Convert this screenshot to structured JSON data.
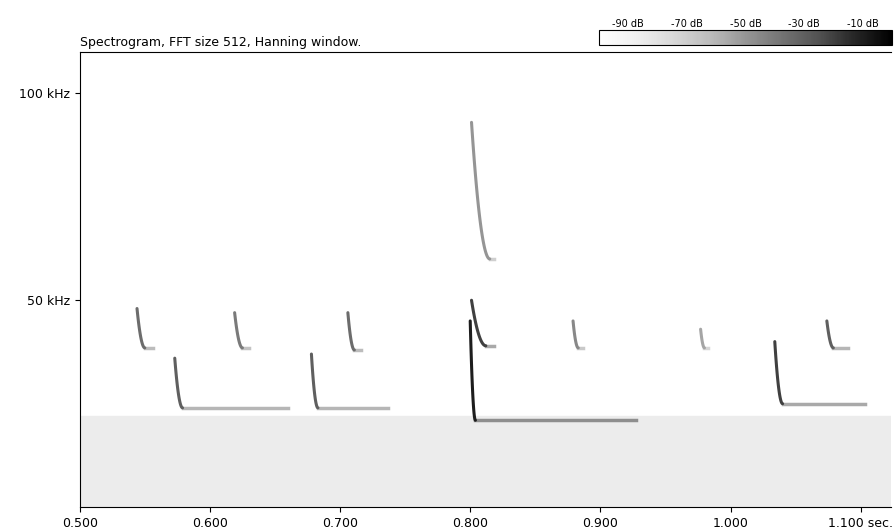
{
  "chart_data": {
    "type": "spectrogram",
    "title": "Spectrogram, FFT size 512, Hanning window.",
    "xlim": [
      0.5,
      1.123
    ],
    "xticks": [
      {
        "value": 0.5,
        "label": "0.500"
      },
      {
        "value": 0.6,
        "label": "0.600"
      },
      {
        "value": 0.7,
        "label": "0.700"
      },
      {
        "value": 0.8,
        "label": "0.800"
      },
      {
        "value": 0.9,
        "label": "0.900"
      },
      {
        "value": 1.0,
        "label": "1.000"
      },
      {
        "value": 1.1,
        "label": "1.100 sec."
      }
    ],
    "ylim": [
      0,
      110
    ],
    "yticks": [
      {
        "value": 50,
        "label": "50 kHz"
      },
      {
        "value": 100,
        "label": "100 kHz"
      }
    ],
    "colorbar_range": [
      -100,
      0
    ],
    "colorbar_ticks": [
      {
        "value": -90,
        "label": "-90 dB"
      },
      {
        "value": -70,
        "label": "-70 dB"
      },
      {
        "value": -50,
        "label": "-50 dB"
      },
      {
        "value": -30,
        "label": "-30 dB"
      },
      {
        "value": -10,
        "label": "-10 dB"
      }
    ],
    "noise_band": {
      "f_high": 22,
      "level": -85
    },
    "calls": [
      {
        "t_start": 0.544,
        "t_end": 0.55,
        "f_start": 48,
        "f_end": 38.5,
        "tail_end": 0.556,
        "level": -35
      },
      {
        "t_start": 0.573,
        "t_end": 0.579,
        "f_start": 36,
        "f_end": 24,
        "tail_end": 0.66,
        "level": -30
      },
      {
        "t_start": 0.619,
        "t_end": 0.625,
        "f_start": 47,
        "f_end": 38.5,
        "tail_end": 0.63,
        "level": -40
      },
      {
        "t_start": 0.678,
        "t_end": 0.683,
        "f_start": 37,
        "f_end": 24,
        "tail_end": 0.737,
        "level": -30
      },
      {
        "t_start": 0.706,
        "t_end": 0.711,
        "f_start": 47,
        "f_end": 38,
        "tail_end": 0.716,
        "level": -35
      },
      {
        "t_start": 0.8,
        "t_end": 0.804,
        "f_start": 45,
        "f_end": 21,
        "tail_end": 0.927,
        "level": -10
      },
      {
        "t_start": 0.801,
        "t_end": 0.812,
        "f_start": 50,
        "f_end": 39,
        "tail_end": 0.818,
        "level": -20
      },
      {
        "t_start": 0.801,
        "t_end": 0.815,
        "f_start": 93,
        "f_end": 60,
        "tail_end": 0.818,
        "level": -50
      },
      {
        "t_start": 0.879,
        "t_end": 0.883,
        "f_start": 45,
        "f_end": 38.5,
        "tail_end": 0.887,
        "level": -45
      },
      {
        "t_start": 0.977,
        "t_end": 0.98,
        "f_start": 43,
        "f_end": 38.5,
        "tail_end": 0.983,
        "level": -55
      },
      {
        "t_start": 1.034,
        "t_end": 1.04,
        "f_start": 40,
        "f_end": 25,
        "tail_end": 1.103,
        "level": -20
      },
      {
        "t_start": 1.074,
        "t_end": 1.079,
        "f_start": 45,
        "f_end": 38.5,
        "tail_end": 1.09,
        "level": -30
      }
    ]
  }
}
